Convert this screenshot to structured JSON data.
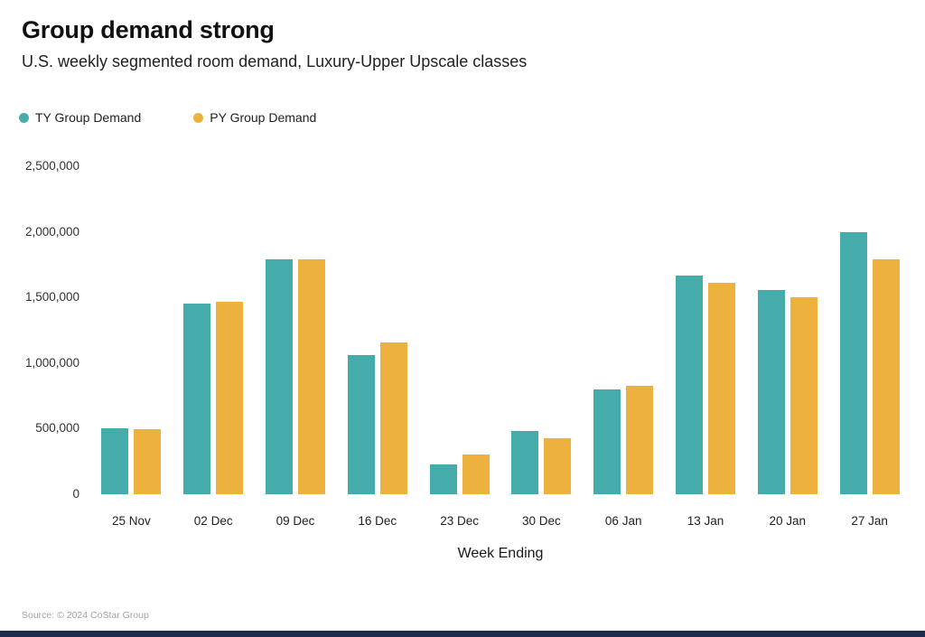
{
  "header": {
    "title": "Group demand strong",
    "subtitle": "U.S. weekly segmented room demand, Luxury-Upper Upscale classes"
  },
  "legend": {
    "items": [
      {
        "label": "TY Group Demand",
        "color": "#45ACAB"
      },
      {
        "label": "PY Group Demand",
        "color": "#ECB23D"
      }
    ]
  },
  "chart_data": {
    "type": "bar",
    "title": "Group demand strong",
    "subtitle": "U.S. weekly segmented room demand, Luxury-Upper Upscale classes",
    "categories": [
      "25 Nov",
      "02 Dec",
      "09 Dec",
      "16 Dec",
      "23 Dec",
      "30 Dec",
      "06 Jan",
      "13 Jan",
      "20 Jan",
      "27 Jan"
    ],
    "series": [
      {
        "name": "TY Group Demand",
        "color": "#45ACAB",
        "values": [
          500000,
          1455000,
          1790000,
          1060000,
          230000,
          480000,
          800000,
          1670000,
          1560000,
          2000000
        ]
      },
      {
        "name": "PY Group Demand",
        "color": "#ECB23D",
        "values": [
          495000,
          1465000,
          1790000,
          1160000,
          300000,
          430000,
          825000,
          1615000,
          1500000,
          1790000
        ]
      }
    ],
    "xlabel": "Week Ending",
    "ylabel": "",
    "ylim": [
      0,
      2500000
    ],
    "yticks": [
      0,
      500000,
      1000000,
      1500000,
      2000000,
      2500000
    ],
    "ytick_labels": [
      "0",
      "500,000",
      "1,000,000",
      "1,500,000",
      "2,000,000",
      "2,500,000"
    ],
    "grid": false,
    "legend_position": "top-left"
  },
  "footer": {
    "source": "Source: © 2024 CoStar Group",
    "brand_bar_color": "#1E2C4E"
  }
}
